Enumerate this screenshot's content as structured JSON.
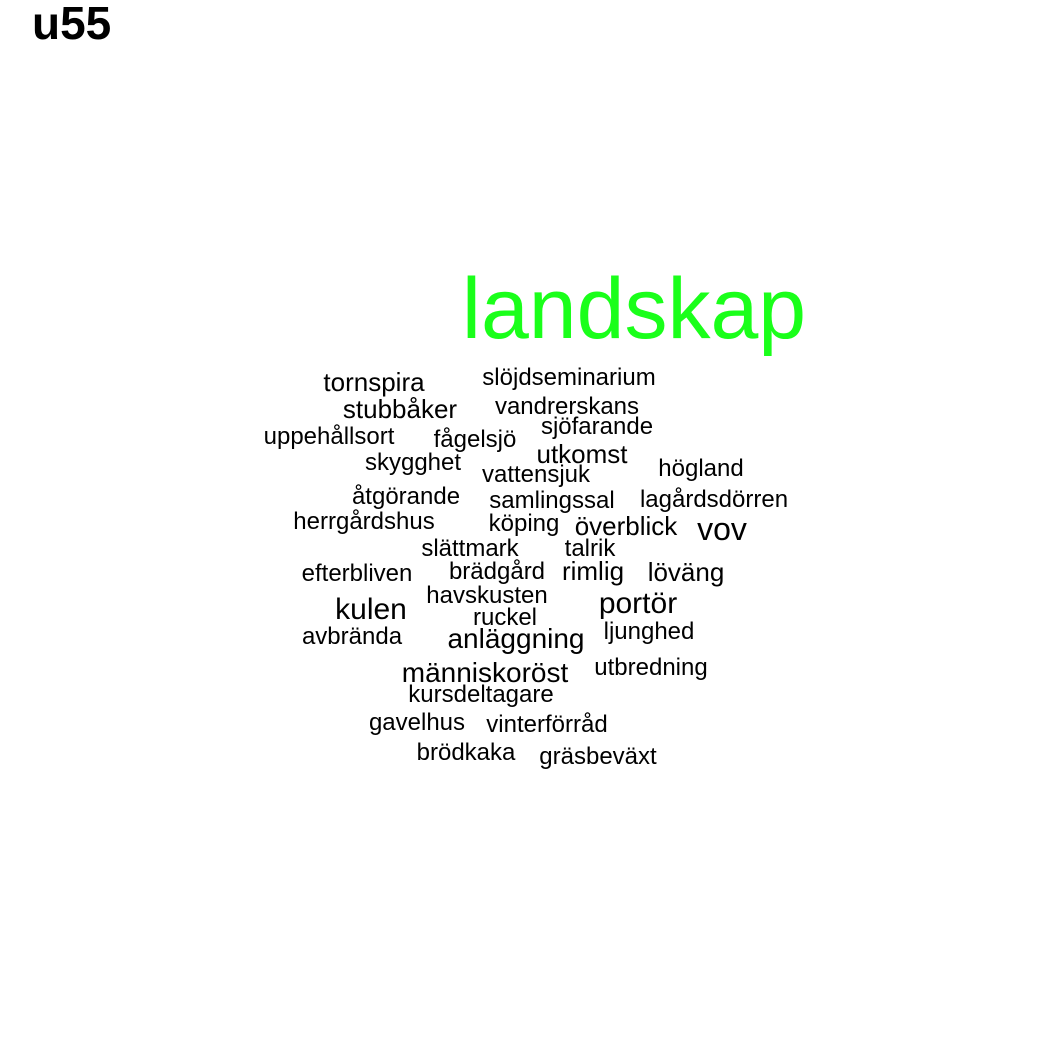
{
  "title": "u55",
  "colors": {
    "primary_word": "#1aff1a",
    "other_words": "#000000",
    "background": "#ffffff"
  },
  "words": [
    "landskap",
    "tornspira",
    "slöjdseminarium",
    "stubbåker",
    "vandrerskans",
    "sjöfarande",
    "uppehållsort",
    "fågelsjö",
    "utkomst",
    "skygghet",
    "vattensjuk",
    "högland",
    "åtgörande",
    "samlingssal",
    "lagårdsdörren",
    "herrgårdshus",
    "köping",
    "överblick",
    "vov",
    "slättmark",
    "talrik",
    "efterbliven",
    "brädgård",
    "rimlig",
    "löväng",
    "havskusten",
    "kulen",
    "portör",
    "ruckel",
    "avbrända",
    "anläggning",
    "ljunghed",
    "människoröst",
    "utbredning",
    "kursdeltagare",
    "gavelhus",
    "vinterförråd",
    "brödkaka",
    "gräsbeväxt"
  ]
}
